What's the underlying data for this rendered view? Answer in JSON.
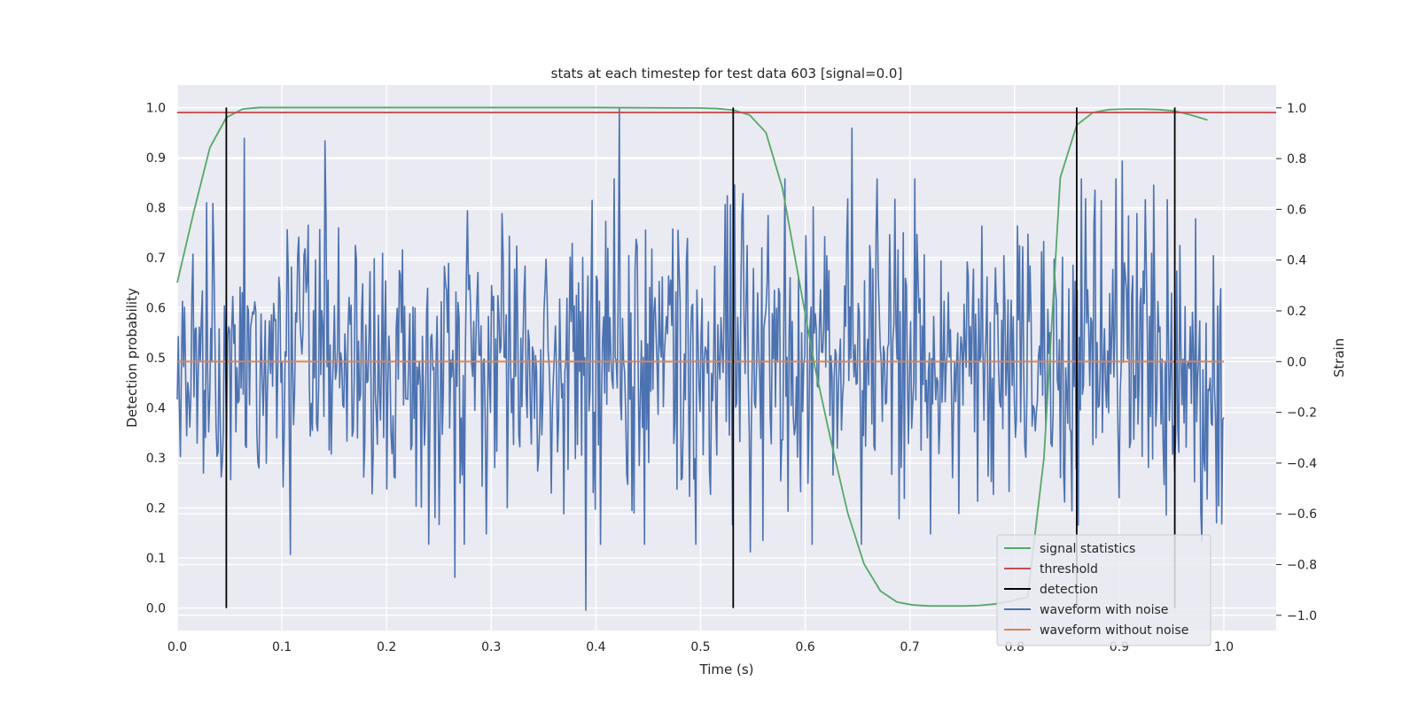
{
  "chart_data": {
    "type": "line",
    "title": "stats at each timestep for test data 603 [signal=0.0]",
    "xlabel": "Time (s)",
    "ylabel_left": "Detection probability",
    "ylabel_right": "Strain",
    "xlim": [
      0.0,
      1.05
    ],
    "ylim_left": [
      -0.045,
      1.045
    ],
    "ylim_right": [
      -1.06,
      1.09
    ],
    "x_ticks": [
      0.0,
      0.1,
      0.2,
      0.3,
      0.4,
      0.5,
      0.6,
      0.7,
      0.8,
      0.9,
      1.0
    ],
    "x_tick_labels": [
      "0.0",
      "0.1",
      "0.2",
      "0.3",
      "0.4",
      "0.5",
      "0.6",
      "0.7",
      "0.8",
      "0.9",
      "1.0"
    ],
    "y_left_ticks": [
      0.0,
      0.1,
      0.2,
      0.3,
      0.4,
      0.5,
      0.6,
      0.7,
      0.8,
      0.9,
      1.0
    ],
    "y_left_tick_labels": [
      "0.0",
      "0.1",
      "0.2",
      "0.3",
      "0.4",
      "0.5",
      "0.6",
      "0.7",
      "0.8",
      "0.9",
      "1.0"
    ],
    "y_right_ticks": [
      -1.0,
      -0.8,
      -0.6,
      -0.4,
      -0.2,
      0.0,
      0.2,
      0.4,
      0.6,
      0.8,
      1.0
    ],
    "y_right_tick_labels": [
      "−1.0",
      "−0.8",
      "−0.6",
      "−0.4",
      "−0.2",
      "0.0",
      "0.2",
      "0.4",
      "0.6",
      "0.8",
      "1.0"
    ],
    "grid": true,
    "legend_position": "lower-right",
    "background": "#eaeaf2",
    "series": [
      {
        "name": "signal statistics",
        "axis": "left",
        "color": "#55a868",
        "x": [
          0.0,
          0.0156,
          0.0312,
          0.0469,
          0.0625,
          0.0781,
          0.1,
          0.2,
          0.3,
          0.4,
          0.5,
          0.5156,
          0.5312,
          0.5469,
          0.5625,
          0.5781,
          0.5937,
          0.6094,
          0.625,
          0.6406,
          0.6562,
          0.6719,
          0.6875,
          0.7031,
          0.7187,
          0.7344,
          0.75,
          0.7656,
          0.7812,
          0.7969,
          0.8125,
          0.8281,
          0.8437,
          0.8594,
          0.875,
          0.8906,
          0.9062,
          0.9219,
          0.9375,
          0.9531,
          0.9687,
          0.9844
        ],
        "values": [
          0.65,
          0.79,
          0.92,
          0.98,
          0.997,
          1.0,
          1.0,
          1.0,
          1.0,
          1.0,
          0.999,
          0.998,
          0.995,
          0.985,
          0.95,
          0.84,
          0.66,
          0.48,
          0.33,
          0.19,
          0.088,
          0.034,
          0.012,
          0.006,
          0.004,
          0.004,
          0.004,
          0.005,
          0.008,
          0.014,
          0.022,
          0.3,
          0.86,
          0.965,
          0.99,
          0.996,
          0.997,
          0.997,
          0.996,
          0.993,
          0.985,
          0.975
        ]
      },
      {
        "name": "threshold",
        "axis": "left",
        "color": "#c44e52",
        "x": [
          0.0,
          1.05
        ],
        "values": [
          0.99,
          0.99
        ]
      },
      {
        "name": "waveform with noise",
        "axis": "right",
        "color": "#4c72b0",
        "x_range": [
          0.0,
          1.0
        ],
        "count": 1000,
        "amplitude": 0.3,
        "extremes": [
          {
            "x": 0.39,
            "value": -0.98
          },
          {
            "x": 0.422,
            "value": 1.0
          },
          {
            "x": 0.265,
            "value": -0.85
          },
          {
            "x": 0.141,
            "value": 0.87
          },
          {
            "x": 0.064,
            "value": 0.88
          },
          {
            "x": 0.108,
            "value": -0.76
          },
          {
            "x": 0.645,
            "value": 0.92
          },
          {
            "x": 0.548,
            "value": -0.75
          },
          {
            "x": 0.903,
            "value": 0.79
          },
          {
            "x": 0.998,
            "value": -0.64
          }
        ]
      },
      {
        "name": "waveform without noise",
        "axis": "right",
        "color": "#dd8452",
        "x": [
          0.0,
          1.0
        ],
        "values": [
          0.0,
          0.0
        ]
      }
    ],
    "detections": {
      "name": "detection",
      "color": "#000000",
      "x": [
        0.0469,
        0.5312,
        0.8594,
        0.9531
      ],
      "y_range": [
        0.0,
        1.0
      ]
    },
    "legend": [
      {
        "label": "signal statistics",
        "color": "#55a868"
      },
      {
        "label": "threshold",
        "color": "#c44e52"
      },
      {
        "label": "detection",
        "color": "#000000"
      },
      {
        "label": "waveform with noise",
        "color": "#4c72b0"
      },
      {
        "label": "waveform without noise",
        "color": "#dd8452"
      }
    ]
  }
}
